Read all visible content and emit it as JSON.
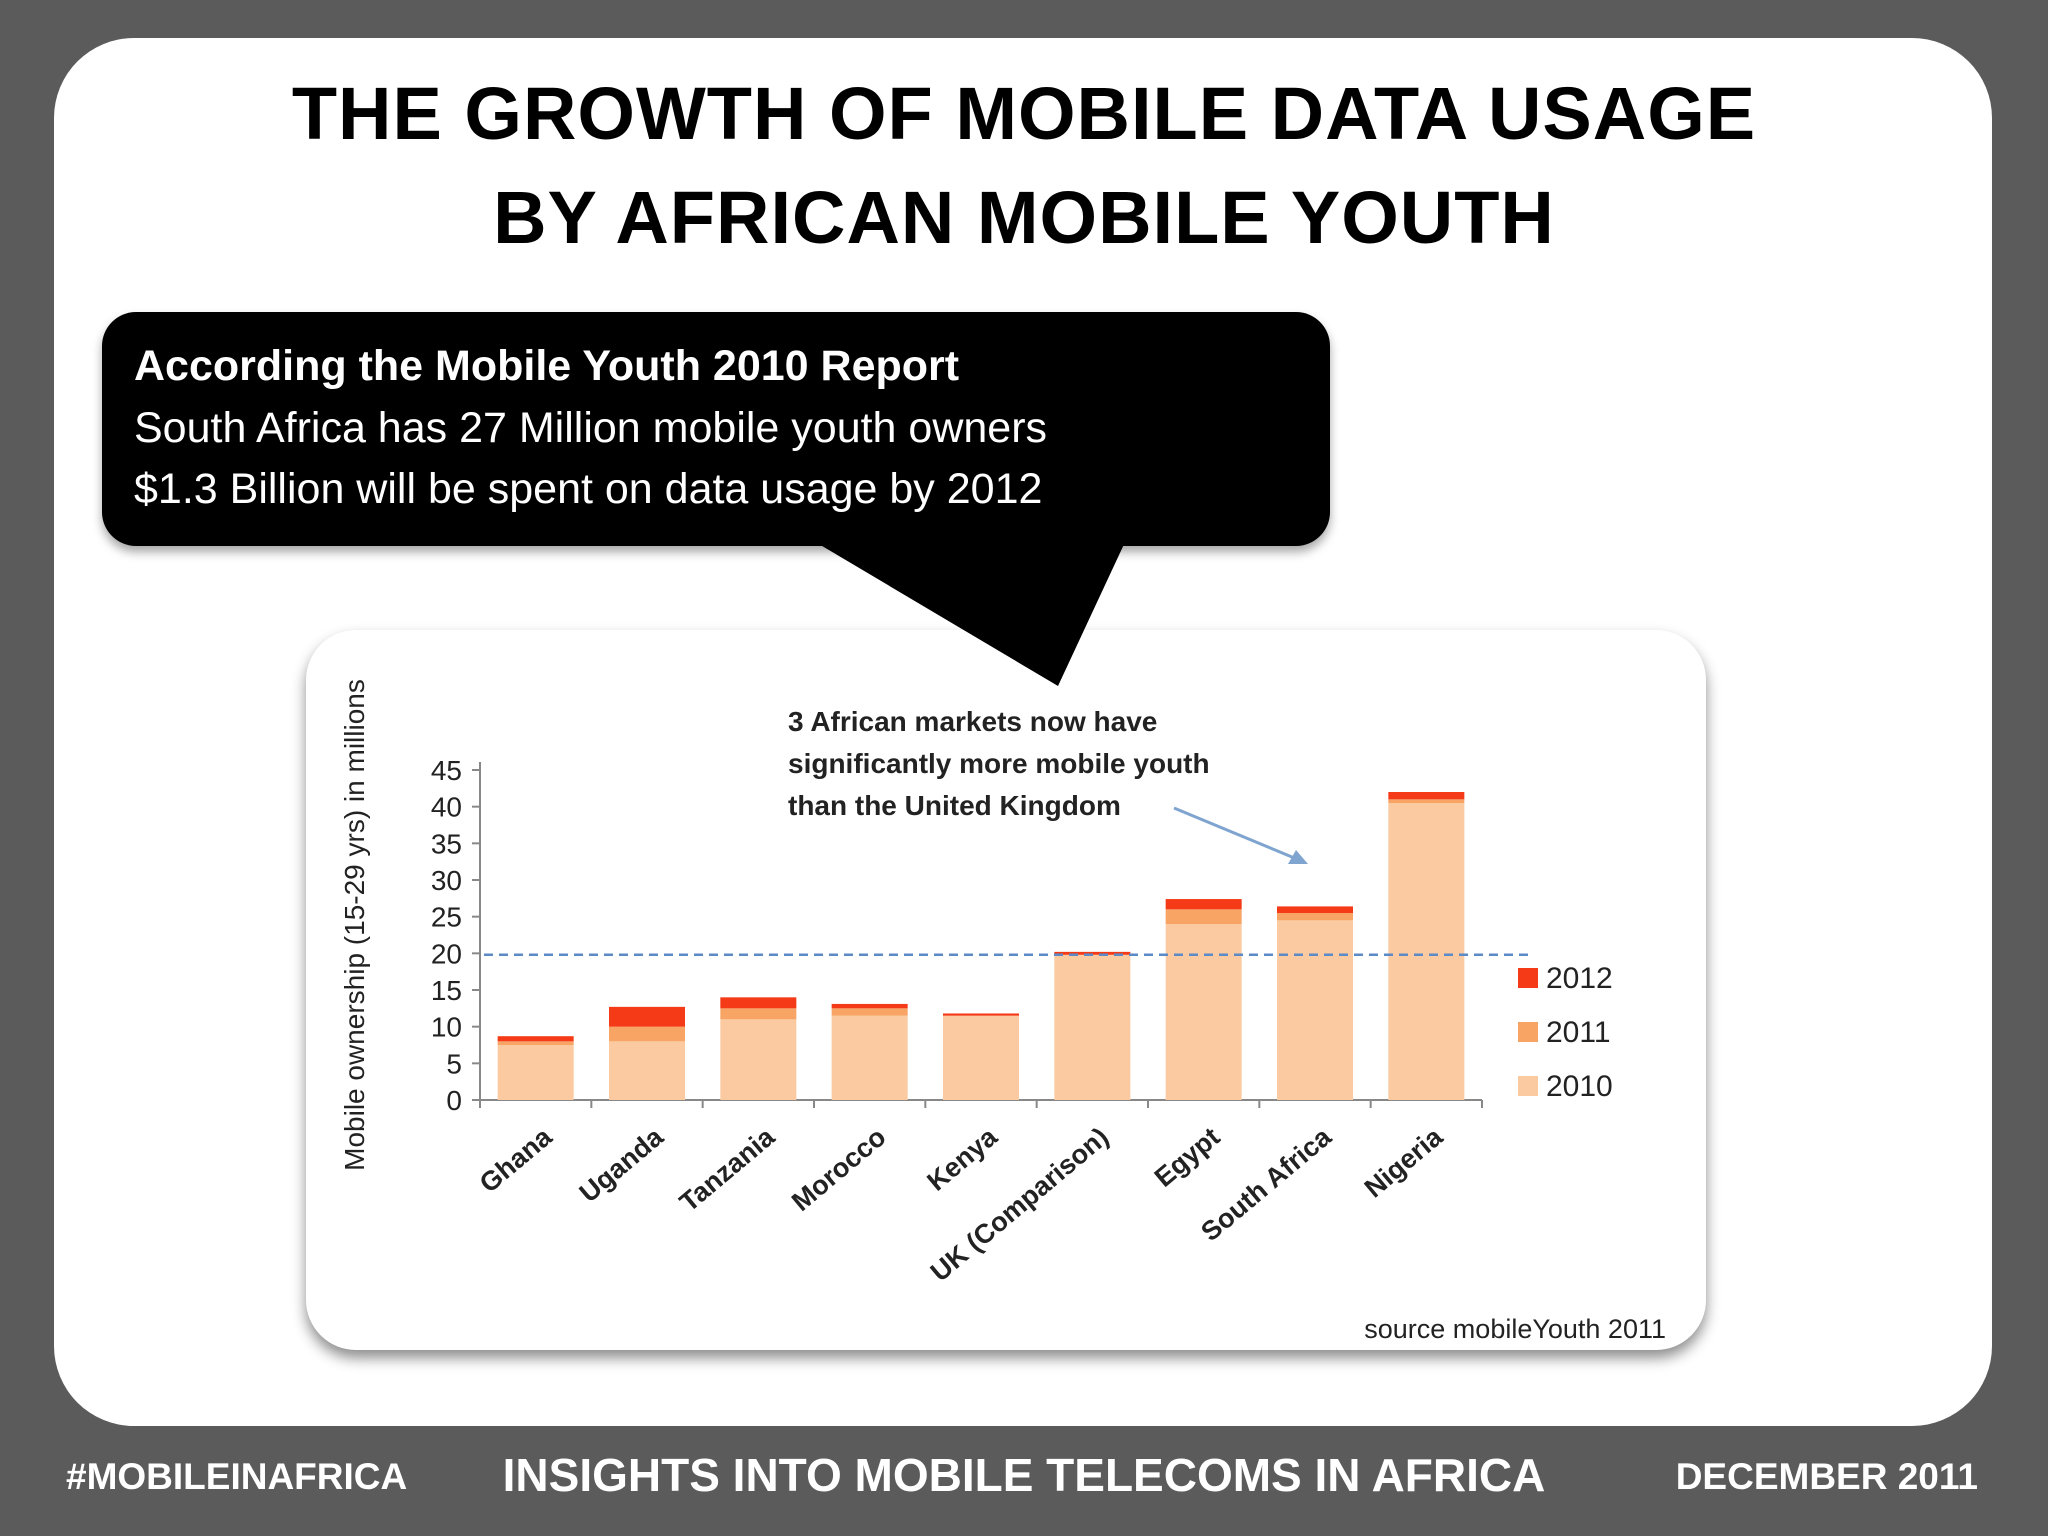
{
  "slide": {
    "title_line1": "THE GROWTH OF MOBILE DATA USAGE",
    "title_line2": "BY AFRICAN MOBILE YOUTH"
  },
  "callout": {
    "heading": "According the Mobile Youth 2010 Report",
    "line2": "South Africa has 27 Million mobile youth owners",
    "line3": "$1.3 Billion will be spent on data usage by 2012"
  },
  "footer": {
    "left": "#MOBILEINAFRICA",
    "center": "INSIGHTS INTO MOBILE TELECOMS IN AFRICA",
    "right": "DECEMBER 2011"
  },
  "colors": {
    "background": "#5b5b5b",
    "series_2010": "#fbcaa0",
    "series_2011": "#f7a464",
    "series_2012": "#f43a16",
    "reference_line": "#5b8ac7",
    "arrow": "#7fa4cf"
  },
  "chart_data": {
    "type": "bar",
    "stacked": true,
    "categories": [
      "Ghana",
      "Uganda",
      "Tanzania",
      "Morocco",
      "Kenya",
      "UK (Comparison)",
      "Egypt",
      "South Africa",
      "Nigeria"
    ],
    "series": [
      {
        "name": "2010",
        "color": "#fbcaa0",
        "values": [
          7.5,
          8,
          11,
          11.5,
          11.5,
          19.8,
          24,
          24.5,
          40.5
        ]
      },
      {
        "name": "2011",
        "color": "#f7a464",
        "values": [
          0.5,
          2,
          1.5,
          1,
          0,
          0,
          2,
          1,
          0.5
        ]
      },
      {
        "name": "2012",
        "color": "#f43a16",
        "values": [
          0.7,
          2.7,
          1.5,
          0.6,
          0.3,
          0.4,
          1.4,
          0.9,
          1
        ]
      }
    ],
    "ylabel": "Mobile ownership (15-29 yrs) in millions",
    "yticks": [
      0,
      5,
      10,
      15,
      20,
      25,
      30,
      35,
      40,
      45
    ],
    "ylim": [
      0,
      45
    ],
    "reference_value": 19.8,
    "legend_position": "right",
    "annotation": [
      "3 African markets now have",
      "significantly more mobile youth",
      "than the United Kingdom"
    ],
    "source": "source mobileYouth 2011"
  }
}
